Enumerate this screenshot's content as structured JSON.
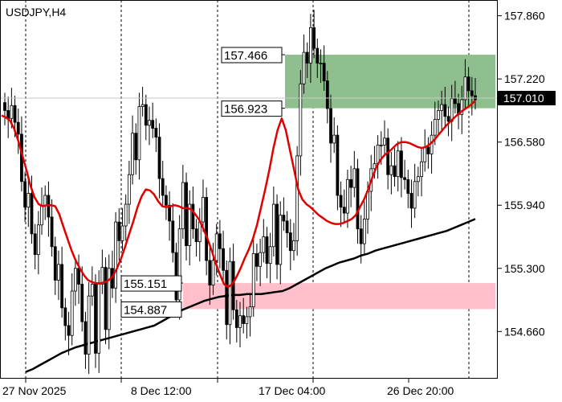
{
  "chart_data": {
    "type": "candlestick",
    "title": "USDJPY,H4",
    "y_ticks": [
      "157.860",
      "157.220",
      "156.580",
      "155.940",
      "155.300",
      "154.660"
    ],
    "x_ticks": [
      "27 Nov 2025",
      "8 Dec 12:00",
      "17 Dec 04:00",
      "26 Dec 20:00"
    ],
    "ylim": [
      154.19,
      158.02
    ],
    "current_price": "157.010",
    "grid": "vertical dotted",
    "zones": [
      {
        "name": "supply",
        "top_label": "157.466",
        "bottom_label": "156.923",
        "top": 157.466,
        "bottom": 156.923,
        "color": "#8fbf8f"
      },
      {
        "name": "demand",
        "top_label": "155.151",
        "bottom_label": "154.887",
        "top": 155.151,
        "bottom": 154.887,
        "color": "#ffc0cb"
      }
    ],
    "close_series": [
      156.9,
      156.82,
      156.95,
      156.78,
      156.66,
      156.18,
      155.92,
      156.06,
      155.65,
      155.44,
      155.74,
      155.94,
      156.04,
      155.82,
      155.52,
      155.18,
      155.34,
      154.9,
      154.72,
      154.62,
      155.07,
      155.3,
      155.14,
      154.76,
      154.43,
      155.02,
      155.14,
      154.44,
      155.14,
      155.31,
      154.68,
      155.3,
      155.1,
      155.77,
      155.58,
      155.73,
      155.95,
      156.25,
      156.67,
      156.4,
      156.94,
      156.96,
      156.75,
      156.8,
      156.72,
      156.63,
      156.21,
      156.04,
      155.94,
      155.78,
      155.46,
      154.98,
      155.7,
      156.17,
      155.53,
      155.95,
      155.7,
      155.57,
      155.77,
      156.02,
      155.38,
      155.13,
      155.38,
      155.65,
      155.5,
      155.28,
      154.73,
      155.37,
      154.88,
      154.7,
      154.82,
      154.74,
      154.81,
      154.91,
      155.45,
      155.32,
      155.46,
      155.62,
      155.35,
      155.52,
      155.95,
      155.34,
      155.84,
      155.78,
      155.66,
      155.48,
      155.58,
      156.44,
      157.17,
      157.49,
      157.38,
      157.74,
      157.53,
      157.38,
      157.38,
      157.2,
      156.92,
      156.57,
      156.65,
      156.04,
      155.92,
      155.86,
      156.2,
      156.12,
      156.31,
      155.7,
      155.55,
      155.8,
      156.08,
      156.31,
      156.36,
      156.55,
      156.55,
      156.62,
      156.25,
      156.34,
      156.23,
      156.49,
      156.22,
      156.2,
      156.06,
      155.91,
      156.18,
      156.23,
      156.38,
      156.53,
      156.46,
      156.65,
      156.81,
      156.9,
      156.96,
      156.84,
      156.79,
      157.02,
      156.97,
      156.86,
      157.01,
      157.24,
      157.1,
      157.05,
      157.01
    ],
    "open_series": [
      156.98,
      156.9,
      156.82,
      156.95,
      156.78,
      156.66,
      156.18,
      155.92,
      156.06,
      155.65,
      155.44,
      155.74,
      155.94,
      156.04,
      155.82,
      155.52,
      155.18,
      155.34,
      154.9,
      154.72,
      154.62,
      155.07,
      155.3,
      155.14,
      154.76,
      154.43,
      155.02,
      155.14,
      154.44,
      155.14,
      155.31,
      154.68,
      155.3,
      155.1,
      155.77,
      155.58,
      155.73,
      155.95,
      156.25,
      156.67,
      156.4,
      156.94,
      156.96,
      156.75,
      156.8,
      156.72,
      156.63,
      156.21,
      156.04,
      155.94,
      155.78,
      155.46,
      154.98,
      155.7,
      156.17,
      155.53,
      155.95,
      155.7,
      155.57,
      155.77,
      156.02,
      155.38,
      155.13,
      155.38,
      155.65,
      155.5,
      155.28,
      154.73,
      155.37,
      154.88,
      154.7,
      154.82,
      154.74,
      154.81,
      154.91,
      155.45,
      155.32,
      155.46,
      155.62,
      155.35,
      155.52,
      155.95,
      155.34,
      155.84,
      155.78,
      155.66,
      155.48,
      155.58,
      156.44,
      157.17,
      157.49,
      157.38,
      157.74,
      157.53,
      157.38,
      157.38,
      157.2,
      156.92,
      156.57,
      156.65,
      156.04,
      155.92,
      155.86,
      156.2,
      156.12,
      156.31,
      155.7,
      155.55,
      155.8,
      156.08,
      156.31,
      156.36,
      156.55,
      156.55,
      156.62,
      156.25,
      156.34,
      156.23,
      156.49,
      156.22,
      156.2,
      156.06,
      155.91,
      156.18,
      156.23,
      156.38,
      156.53,
      156.46,
      156.65,
      156.81,
      156.9,
      156.96,
      156.84,
      156.79,
      157.02,
      156.97,
      156.86,
      157.01,
      157.24,
      157.1,
      157.05
    ],
    "ma_fast": [
      156.85,
      156.83,
      156.8,
      156.72,
      156.6,
      156.45,
      156.3,
      156.14,
      156.02,
      155.95,
      155.93,
      155.94,
      155.94,
      155.93,
      155.85,
      155.72,
      155.6,
      155.48,
      155.38,
      155.3,
      155.23,
      155.18,
      155.16,
      155.15,
      155.15,
      155.16,
      155.18,
      155.22,
      155.3,
      155.4,
      155.52,
      155.65,
      155.78,
      155.92,
      156.03,
      156.1,
      156.09,
      156.05,
      155.98,
      155.93,
      155.92,
      155.93,
      155.94,
      155.93,
      155.91,
      155.91,
      155.9,
      155.85,
      155.79,
      155.7,
      155.6,
      155.48,
      155.35,
      155.24,
      155.14,
      155.11,
      155.14,
      155.21,
      155.3,
      155.4,
      155.49,
      155.6,
      155.74,
      155.92,
      156.1,
      156.3,
      156.52,
      156.7,
      156.82,
      156.7,
      156.5,
      156.3,
      156.1,
      156.0,
      155.95,
      155.92,
      155.88,
      155.84,
      155.81,
      155.78,
      155.76,
      155.75,
      155.75,
      155.76,
      155.78,
      155.8,
      155.84,
      155.92,
      156.0,
      156.1,
      156.22,
      156.33,
      156.4,
      156.45,
      156.48,
      156.52,
      156.56,
      156.58,
      156.58,
      156.57,
      156.55,
      156.53,
      156.52,
      156.53,
      156.56,
      156.6,
      156.65,
      156.7,
      156.75,
      156.79,
      156.83,
      156.87,
      156.9,
      156.93,
      156.96,
      157.0
    ],
    "ma_slow": [
      154.25,
      154.28,
      154.32,
      154.36,
      154.4,
      154.44,
      154.47,
      154.5,
      154.52,
      154.54,
      154.56,
      154.58,
      154.6,
      154.62,
      154.64,
      154.66,
      154.68,
      154.7,
      154.72,
      154.76,
      154.8,
      154.84,
      154.88,
      154.91,
      154.94,
      154.97,
      154.99,
      155.01,
      155.02,
      155.03,
      155.03,
      155.04,
      155.04,
      155.04,
      155.05,
      155.06,
      155.07,
      155.1,
      155.14,
      155.18,
      155.22,
      155.26,
      155.3,
      155.33,
      155.36,
      155.38,
      155.4,
      155.43,
      155.45,
      155.48,
      155.5,
      155.52,
      155.54,
      155.56,
      155.58,
      155.6,
      155.62,
      155.64,
      155.66,
      155.68,
      155.71,
      155.74,
      155.77,
      155.8
    ]
  }
}
